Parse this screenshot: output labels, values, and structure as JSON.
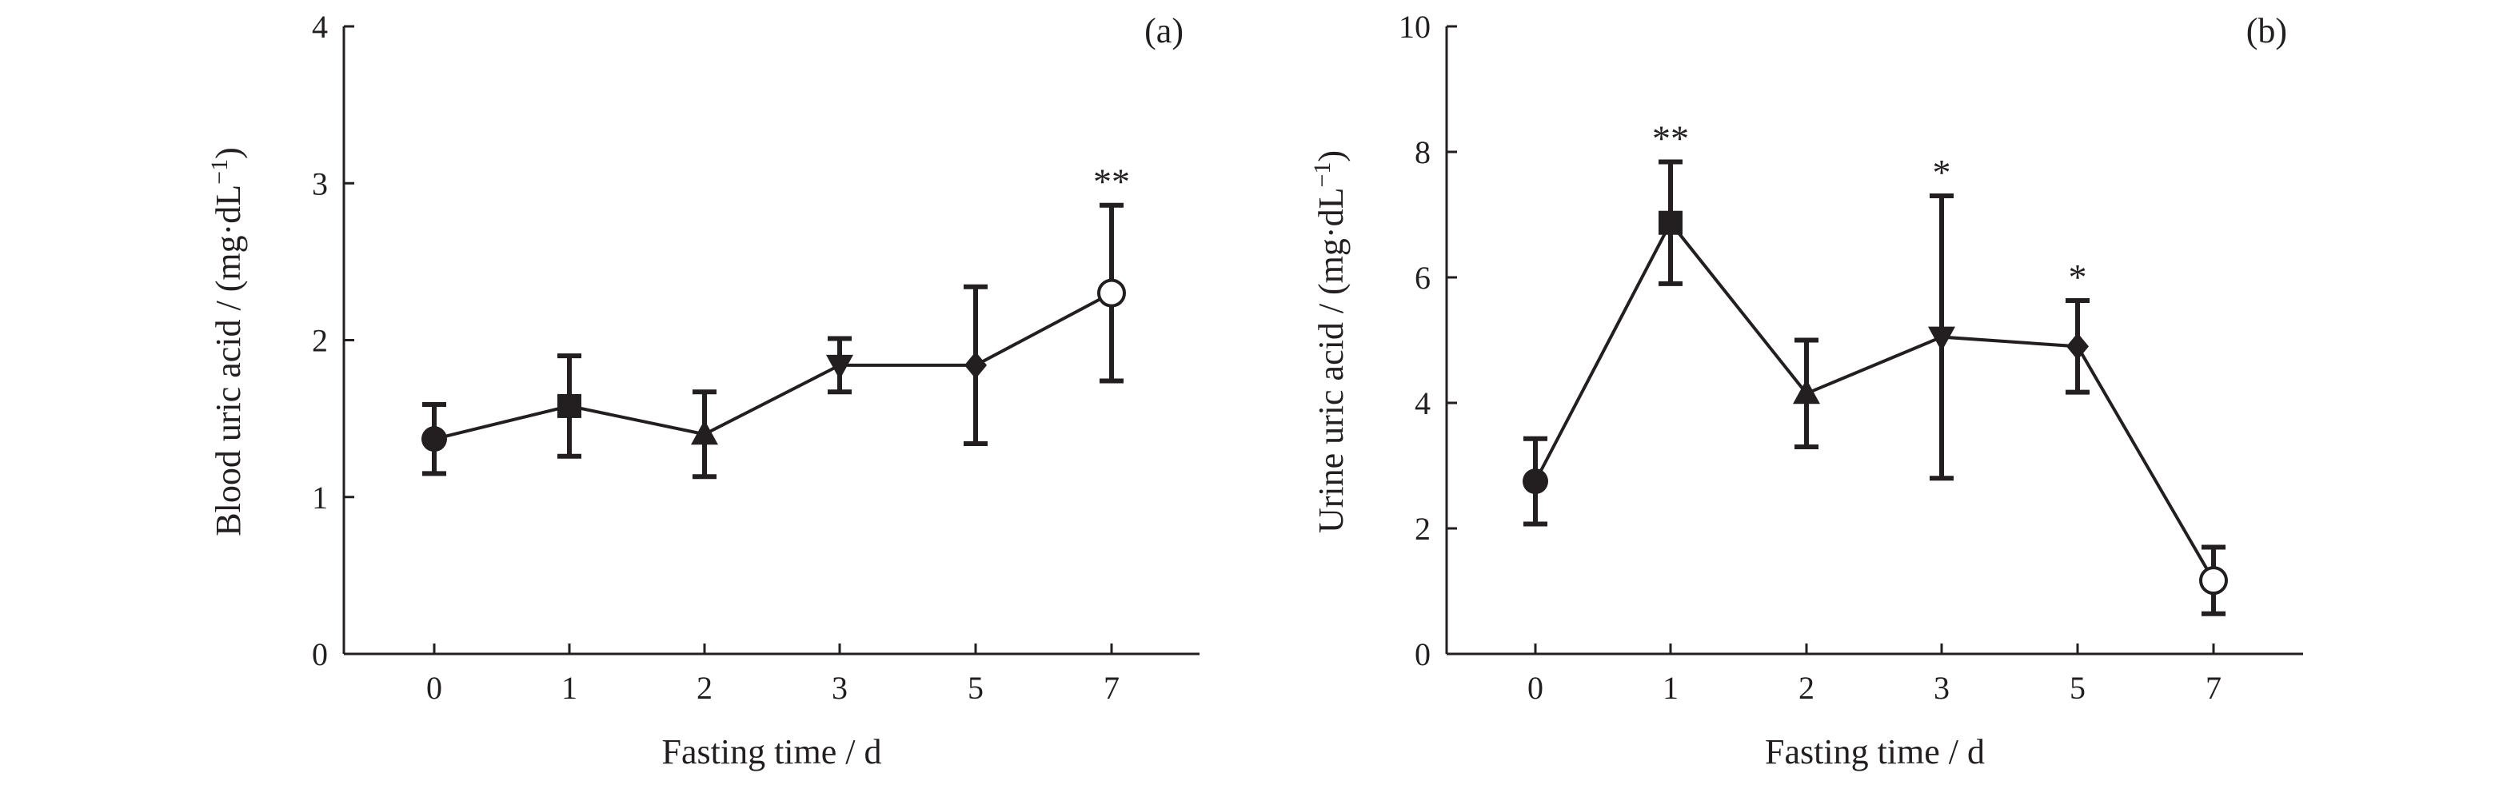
{
  "chart_data": [
    {
      "type": "line",
      "panel_label": "(a)",
      "title": "",
      "xlabel": "Fasting time / d",
      "ylabel": "Blood uric acid / (mg·dL⁻¹)",
      "categories": [
        "0",
        "1",
        "2",
        "3",
        "5",
        "7"
      ],
      "ylim": [
        0,
        4
      ],
      "yticks": [
        "0",
        "1",
        "2",
        "3",
        "4"
      ],
      "grid": false,
      "series": [
        {
          "values": [
            1.37,
            1.58,
            1.4,
            1.84,
            1.84,
            2.3
          ],
          "error": [
            0.22,
            0.32,
            0.27,
            0.17,
            0.5,
            0.56
          ],
          "markers": [
            "filled-circle",
            "filled-square",
            "filled-triangle-up",
            "filled-triangle-down",
            "filled-diamond",
            "open-circle"
          ],
          "significance": [
            "",
            "",
            "",
            "",
            "",
            "**"
          ]
        }
      ]
    },
    {
      "type": "line",
      "panel_label": "(b)",
      "title": "",
      "xlabel": "Fasting time / d",
      "ylabel": "Urine uric acid / (mg·dL⁻¹)",
      "categories": [
        "0",
        "1",
        "2",
        "3",
        "5",
        "7"
      ],
      "ylim": [
        0,
        10
      ],
      "yticks": [
        "0",
        "2",
        "4",
        "6",
        "8",
        "10"
      ],
      "grid": false,
      "series": [
        {
          "values": [
            2.75,
            6.87,
            4.15,
            5.05,
            4.9,
            1.17
          ],
          "error": [
            0.68,
            0.97,
            0.85,
            2.25,
            0.73,
            0.53
          ],
          "markers": [
            "filled-circle",
            "filled-square",
            "filled-triangle-up",
            "filled-triangle-down",
            "filled-diamond",
            "open-circle"
          ],
          "significance": [
            "",
            "**",
            "",
            "*",
            "*",
            ""
          ]
        }
      ]
    }
  ]
}
